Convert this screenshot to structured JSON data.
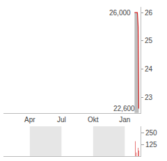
{
  "chart_data": [
    {
      "type": "line",
      "x": [
        12.93,
        13.0,
        13.1,
        13.2,
        13.27,
        13.3,
        13.33
      ],
      "values": [
        26,
        26,
        26,
        26,
        25.5,
        24.6,
        22.6
      ],
      "color": "#d62020",
      "xlim": [
        0.5,
        13.5
      ],
      "xticks": [
        {
          "value": 3,
          "label": "Apr"
        },
        {
          "value": 6,
          "label": "Jul"
        },
        {
          "value": 9,
          "label": "Okt"
        },
        {
          "value": 12,
          "label": "Jan"
        }
      ],
      "ylim": [
        22.45,
        26.2
      ],
      "yticks": [
        23,
        24,
        25,
        26
      ],
      "annotations": [
        {
          "text": "26,000",
          "x": 12.93,
          "y": 26
        },
        {
          "text": "22,600",
          "x": 13.33,
          "y": 22.6
        }
      ],
      "grid": false
    },
    {
      "type": "bar",
      "x": [
        13.0,
        13.1,
        13.27,
        13.33
      ],
      "values": [
        160,
        40,
        90,
        60
      ],
      "color": "#d62020",
      "xlim": [
        0.5,
        13.5
      ],
      "xticks": [
        3,
        6,
        9,
        12
      ],
      "ylim": [
        0,
        320
      ],
      "yticks": [
        125,
        250
      ],
      "tick_labels": "y",
      "grid": false
    }
  ]
}
